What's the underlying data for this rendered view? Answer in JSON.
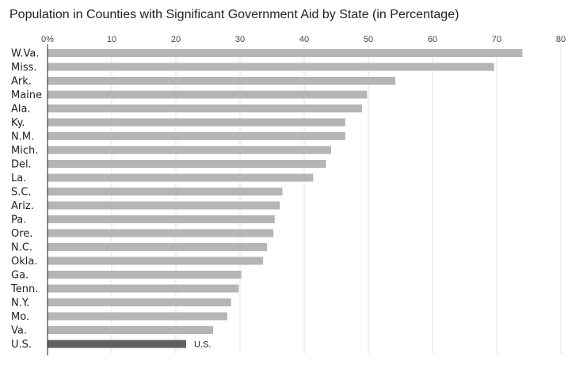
{
  "chart_data": {
    "type": "bar",
    "orientation": "horizontal",
    "title": "Population in Counties with Significant Government Aid by State (in Percentage)",
    "xlabel": "",
    "ylabel": "",
    "xlim": [
      0,
      80
    ],
    "ticks": [
      0,
      10,
      20,
      30,
      40,
      50,
      60,
      70,
      80
    ],
    "tick_labels": [
      "0%",
      "10",
      "20",
      "30",
      "40",
      "50",
      "60",
      "70",
      "80"
    ],
    "grid": true,
    "axis_position": "top",
    "categories": [
      "W.Va.",
      "Miss.",
      "Ark.",
      "Maine",
      "Ala.",
      "Ky.",
      "N.M.",
      "Mich.",
      "Del.",
      "La.",
      "S.C.",
      "Ariz.",
      "Pa.",
      "Ore.",
      "N.C.",
      "Okla.",
      "Ga.",
      "Tenn.",
      "N.Y.",
      "Mo.",
      "Va.",
      "U.S."
    ],
    "values": [
      74,
      69.6,
      54.2,
      49.8,
      49,
      46.4,
      46.4,
      44.2,
      43.4,
      41.4,
      36.6,
      36.2,
      35.4,
      35.2,
      34.2,
      33.6,
      30.2,
      29.8,
      28.6,
      28,
      25.8,
      21.6
    ],
    "highlight": {
      "category": "U.S.",
      "data_label": "U.S."
    },
    "colors": {
      "bar": "#b5b5b5",
      "highlight_bar": "#5f5f5f",
      "grid": "#e0e0e0",
      "axis": "#222222"
    }
  }
}
